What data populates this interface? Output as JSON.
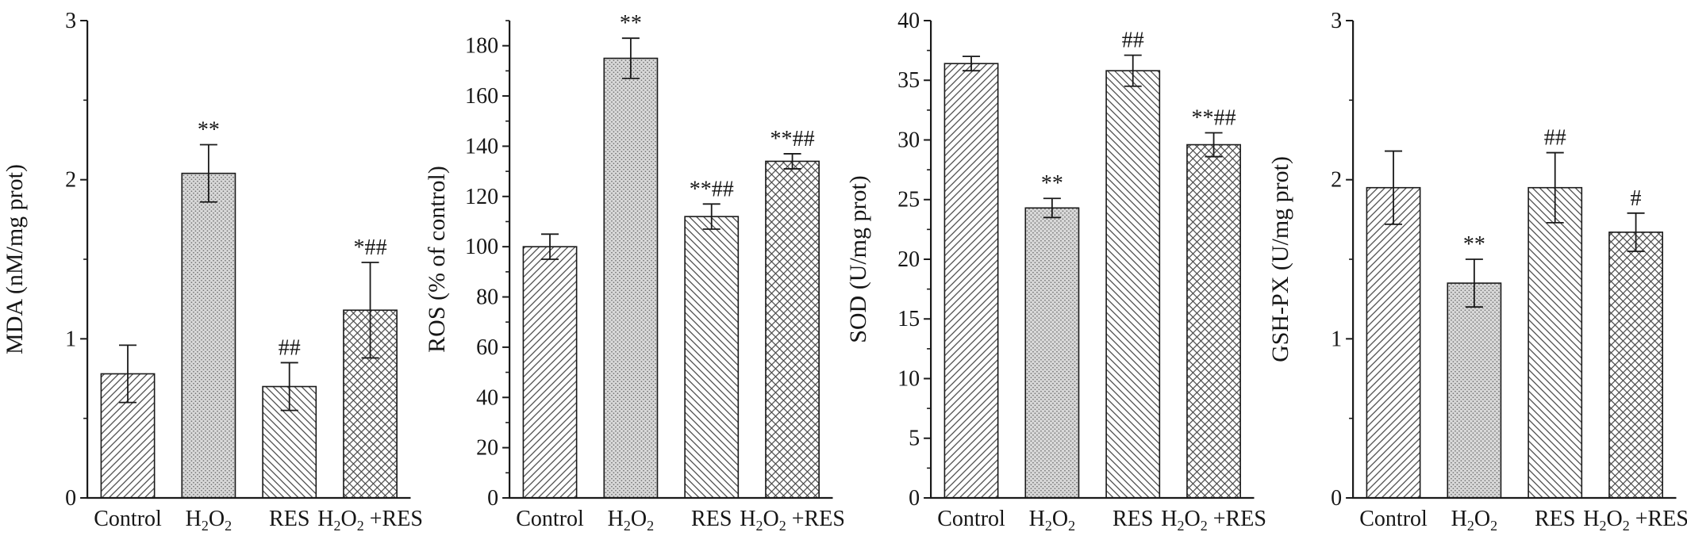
{
  "figure": {
    "background": "#ffffff",
    "description": "Four-panel bar figure of oxidative stress markers across treatment groups"
  },
  "colors": {
    "axis": "#1a1a1a",
    "text": "#161616",
    "bar_border": "#1a1a1a",
    "hatch_line": "#4d4d4d",
    "dots_background": "#d8d8d8",
    "dot": "#6f6f6f",
    "error_bar": "#1a1a1a"
  },
  "chart_data": [
    {
      "type": "bar",
      "title": "",
      "ylabel": "MDA (nM/mg prot)",
      "xlabel": "",
      "ylim": [
        0,
        3
      ],
      "yticks": [
        0,
        1,
        2,
        3
      ],
      "minor_per_major": 1,
      "grid": false,
      "legend": "none",
      "categories": [
        "Control",
        "H₂O₂",
        "RES",
        "H₂O₂ +RES"
      ],
      "values": [
        0.78,
        2.04,
        0.7,
        1.18
      ],
      "errors": [
        0.18,
        0.18,
        0.15,
        0.3
      ],
      "annotations": [
        "",
        "**",
        "##",
        "*##"
      ],
      "patterns": [
        "diag-right",
        "dots",
        "diag-left",
        "cross"
      ]
    },
    {
      "type": "bar",
      "title": "",
      "ylabel": "ROS (% of control)",
      "xlabel": "",
      "ylim": [
        0,
        190
      ],
      "yticks": [
        0,
        20,
        40,
        60,
        80,
        100,
        120,
        140,
        160,
        180
      ],
      "minor_per_major": 1,
      "grid": false,
      "legend": "none",
      "categories": [
        "Control",
        "H₂O₂",
        "RES",
        "H₂O₂ +RES"
      ],
      "values": [
        100,
        175,
        112,
        134
      ],
      "errors": [
        5,
        8,
        5,
        3
      ],
      "annotations": [
        "",
        "**",
        "**##",
        "**##"
      ],
      "patterns": [
        "diag-right",
        "dots",
        "diag-left",
        "cross"
      ]
    },
    {
      "type": "bar",
      "title": "",
      "ylabel": "SOD (U/mg prot)",
      "xlabel": "",
      "ylim": [
        0,
        40
      ],
      "yticks": [
        0,
        5,
        10,
        15,
        20,
        25,
        30,
        35,
        40
      ],
      "minor_per_major": 1,
      "grid": false,
      "legend": "none",
      "categories": [
        "Control",
        "H₂O₂",
        "RES",
        "H₂O₂ +RES"
      ],
      "values": [
        36.4,
        24.3,
        35.8,
        29.6
      ],
      "errors": [
        0.6,
        0.8,
        1.3,
        1.0
      ],
      "annotations": [
        "",
        "**",
        "##",
        "**##"
      ],
      "patterns": [
        "diag-right",
        "dots",
        "diag-left",
        "cross"
      ]
    },
    {
      "type": "bar",
      "title": "",
      "ylabel": "GSH-PX (U/mg prot)",
      "xlabel": "",
      "ylim": [
        0,
        3
      ],
      "yticks": [
        0,
        1,
        2,
        3
      ],
      "minor_per_major": 1,
      "grid": false,
      "legend": "none",
      "categories": [
        "Control",
        "H₂O₂",
        "RES",
        "H₂O₂ +RES"
      ],
      "values": [
        1.95,
        1.35,
        1.95,
        1.67
      ],
      "errors": [
        0.23,
        0.15,
        0.22,
        0.12
      ],
      "annotations": [
        "",
        "**",
        "##",
        "#"
      ],
      "patterns": [
        "diag-right",
        "dots",
        "diag-left",
        "cross"
      ]
    }
  ]
}
